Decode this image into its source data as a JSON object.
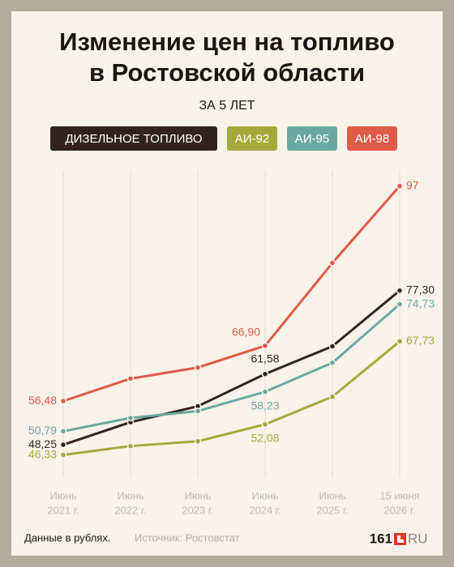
{
  "chart_data": {
    "type": "line",
    "title": [
      "Изменение цен на топливо",
      "в Ростовской области"
    ],
    "subtitle": "ЗА 5 ЛЕТ",
    "categories": [
      [
        "Июнь",
        "2021 г."
      ],
      [
        "Июнь",
        "2022 г."
      ],
      [
        "Июнь",
        "2023 г."
      ],
      [
        "Июнь",
        "2024 г."
      ],
      [
        "Июнь",
        "2025 г."
      ],
      [
        "15 июня",
        "2026 г."
      ]
    ],
    "ylim": [
      42,
      100
    ],
    "series": [
      {
        "name": "ДИЗЕЛЬНОЕ ТОПЛИВО",
        "color": "#33231f",
        "values": [
          48.25,
          52.5,
          55.5,
          61.58,
          66.8,
          77.3
        ],
        "value_labels": [
          "48,25",
          null,
          null,
          "61,58",
          null,
          "77,30"
        ]
      },
      {
        "name": "АИ-92",
        "color": "#a6a83c",
        "values": [
          46.33,
          48.0,
          48.9,
          52.08,
          57.3,
          67.73
        ],
        "value_labels": [
          "46,33",
          null,
          null,
          "52,08",
          null,
          "67,73"
        ]
      },
      {
        "name": "АИ-95",
        "color": "#6ba8a3",
        "values": [
          50.79,
          53.3,
          54.6,
          58.23,
          63.7,
          74.73
        ],
        "value_labels": [
          "50,79",
          null,
          null,
          "58,23",
          null,
          "74,73"
        ]
      },
      {
        "name": "АИ-98",
        "color": "#df5a47",
        "values": [
          56.48,
          60.7,
          62.8,
          66.9,
          82.5,
          97
        ],
        "value_labels": [
          "56,48",
          null,
          null,
          "66,90",
          null,
          "97"
        ]
      }
    ]
  },
  "footer": {
    "note": "Данные в рублях.",
    "source": "Источник: Ростовстат",
    "logo_number": "161",
    "logo_domain": "RU"
  }
}
